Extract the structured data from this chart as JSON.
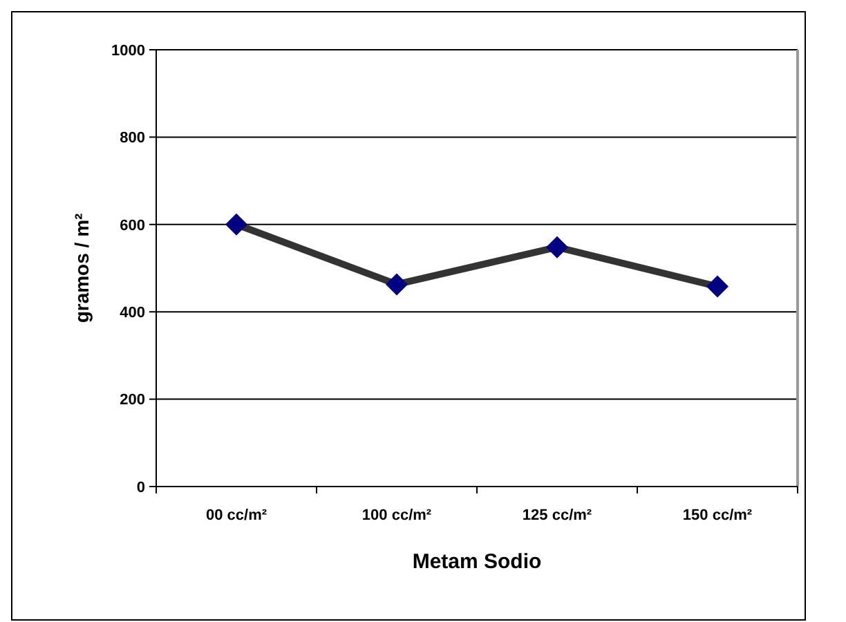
{
  "chart_data": {
    "type": "line",
    "xlabel": "Metam Sodio",
    "ylabel": "gramos / m²",
    "categories": [
      "00 cc/m²",
      "100 cc/m²",
      "125 cc/m²",
      "150 cc/m²"
    ],
    "series": [
      {
        "color": "#000080",
        "values": [
          600,
          463,
          548,
          458
        ]
      }
    ],
    "ylim": [
      0,
      1000
    ],
    "yticks": [
      0,
      200,
      400,
      600,
      800,
      1000
    ],
    "grid": "y",
    "marker": "diamond",
    "line_style": "solid"
  }
}
